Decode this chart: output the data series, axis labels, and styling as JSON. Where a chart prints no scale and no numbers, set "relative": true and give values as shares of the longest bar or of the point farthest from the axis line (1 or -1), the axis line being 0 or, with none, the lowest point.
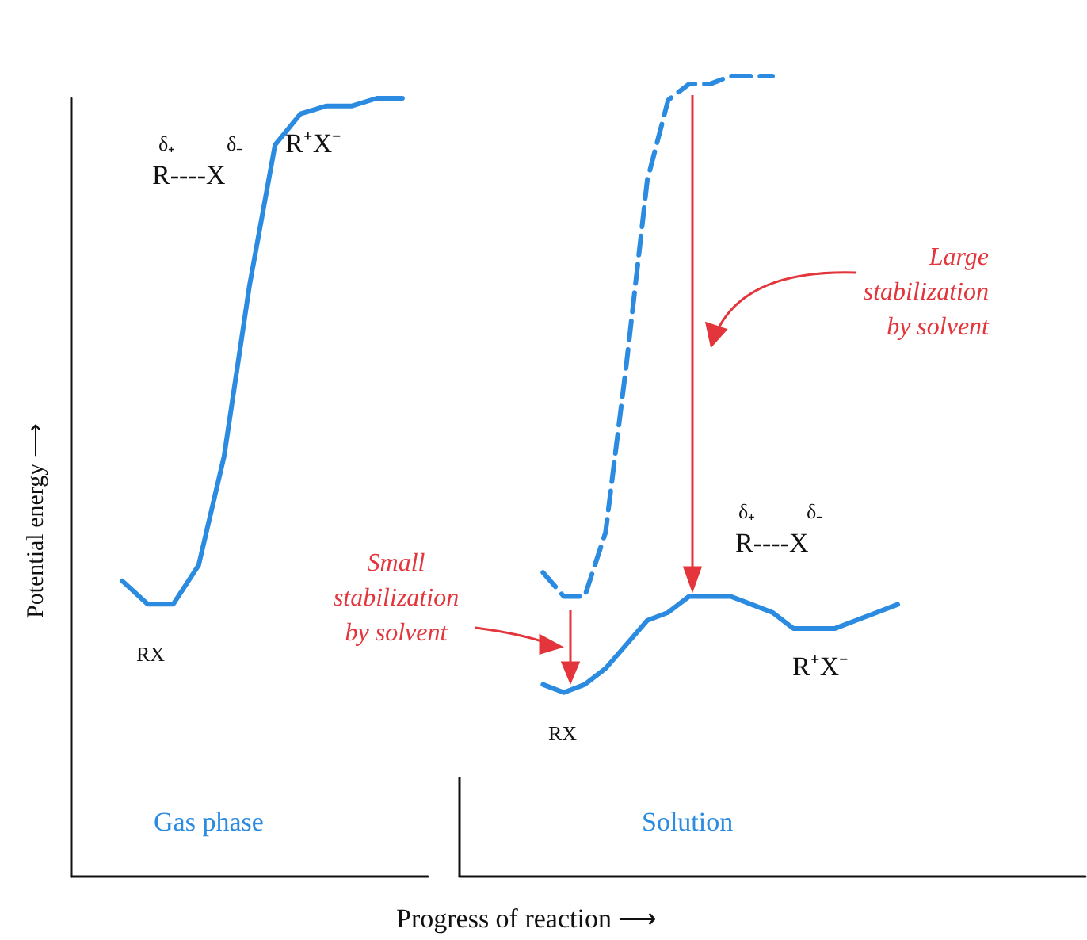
{
  "chart_data": [
    {
      "type": "line",
      "title": "Gas phase",
      "ylabel": "Potential energy ⟶",
      "relative": true,
      "tick_labels": false,
      "grid": false,
      "marker": "none",
      "categories": [
        null,
        null,
        null,
        null,
        null,
        null,
        null,
        null,
        null,
        null,
        null,
        null,
        null,
        null,
        null
      ],
      "series": [
        {
          "color": "#2a8be0",
          "line_style": "solid",
          "values": [
            null,
            null,
            0.38,
            0.35,
            0.35,
            0.4,
            0.54,
            0.76,
            0.94,
            0.98,
            0.99,
            0.99,
            1.0,
            1.0,
            null
          ]
        }
      ],
      "annotations": [
        "δ₊",
        "δ₋",
        "R----X",
        "R⁺X⁻",
        "RX"
      ]
    },
    {
      "type": "line",
      "title": "Solution",
      "xlabel": "Progress of reaction ⟶",
      "relative": true,
      "tick_labels": false,
      "grid": false,
      "marker": "none",
      "categories": [
        null,
        null,
        null,
        null,
        null,
        null,
        null,
        null,
        null,
        null,
        null,
        null,
        null,
        null,
        null,
        null,
        null,
        null,
        null,
        null,
        null,
        null,
        null,
        null,
        null,
        null,
        null,
        null,
        null,
        null,
        null
      ],
      "series": [
        {
          "color": "#2a8be0",
          "line_style": "dashed",
          "values": [
            null,
            null,
            null,
            null,
            0.38,
            0.35,
            0.35,
            0.43,
            0.64,
            0.87,
            0.97,
            0.99,
            0.99,
            1.0,
            1.0,
            1.0,
            null,
            null,
            null,
            null,
            null,
            null,
            null,
            null,
            null,
            null,
            null,
            null,
            null,
            null,
            null
          ]
        },
        {
          "color": "#2a8be0",
          "line_style": "solid",
          "values": [
            null,
            null,
            null,
            null,
            0.24,
            0.23,
            0.24,
            0.26,
            0.29,
            0.32,
            0.33,
            0.35,
            0.35,
            0.35,
            0.34,
            0.33,
            0.31,
            0.31,
            0.31,
            0.32,
            0.33,
            0.34,
            null,
            null,
            null,
            null,
            null,
            null,
            null,
            null,
            null
          ]
        }
      ],
      "annotations": [
        "Large stabilization by solvent",
        "Small stabilization by solvent",
        "δ₊",
        "δ₋",
        "R----X",
        "RX",
        "R⁺X⁻"
      ]
    }
  ]
}
